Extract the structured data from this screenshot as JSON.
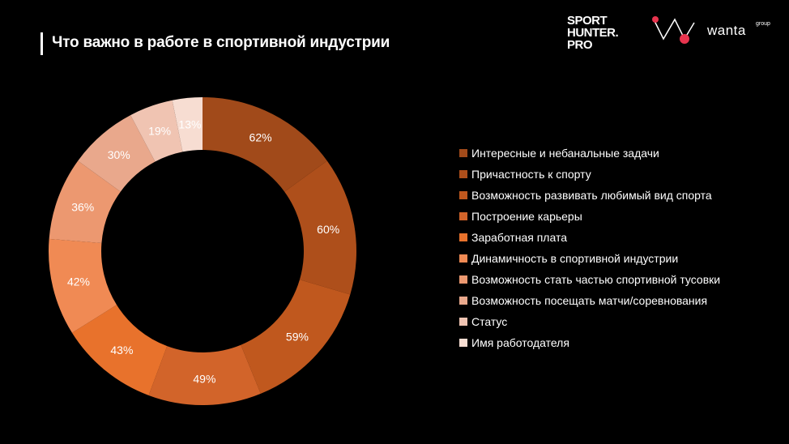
{
  "header": {
    "title": "Что важно в работе в спортивной индустрии"
  },
  "logos": {
    "sporthunter_lines": [
      "SPORT",
      "HUNTER.",
      "PRO"
    ],
    "wanta": "wanta",
    "wanta_group": "group"
  },
  "colors": {
    "background": "#000000",
    "accent_red": "#e8344e"
  },
  "chart_data": {
    "type": "pie",
    "subtype": "donut",
    "legend_position": "right",
    "categories": [
      "Интересные и небанальные задачи",
      "Причастность к спорту",
      "Возможность развивать любимый вид спорта",
      "Построение карьеры",
      "Заработная плата",
      "Динамичность в спортивной индустрии",
      "Возможность стать частью спортивной тусовки",
      "Возможность посещать матчи/соревнования",
      "Статус",
      "Имя работодателя"
    ],
    "values": [
      62,
      60,
      59,
      49,
      43,
      42,
      36,
      30,
      19,
      13
    ],
    "labels": [
      "62%",
      "60%",
      "59%",
      "49%",
      "43%",
      "42%",
      "36%",
      "30%",
      "19%",
      "13%"
    ],
    "colors": [
      "#a14a1a",
      "#ae4f1b",
      "#c0581e",
      "#d2642a",
      "#e8722c",
      "#f08a54",
      "#ec9870",
      "#e9a88c",
      "#f0c4b2",
      "#f7ddd2"
    ]
  }
}
